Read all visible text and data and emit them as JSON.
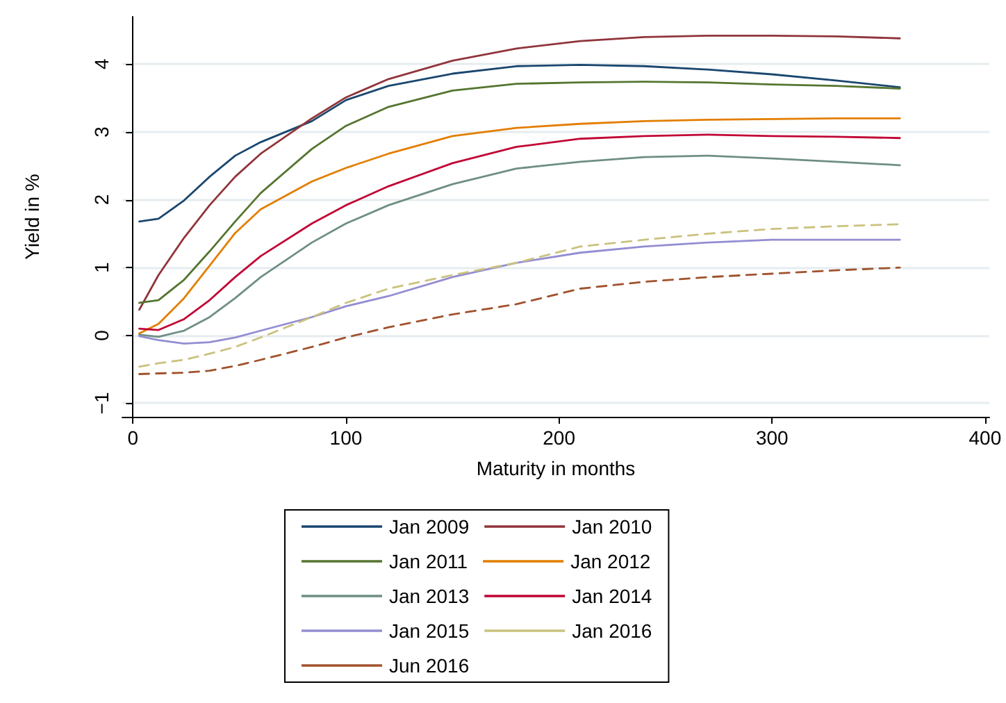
{
  "chart_data": {
    "type": "line",
    "xlabel": "Maturity in months",
    "ylabel": "Yield in %",
    "x": [
      3,
      12,
      24,
      36,
      48,
      60,
      84,
      100,
      120,
      150,
      180,
      210,
      240,
      270,
      300,
      330,
      360
    ],
    "xlim": [
      -5,
      402
    ],
    "xticks": [
      0,
      100,
      200,
      300,
      400
    ],
    "ylim": [
      -1.2,
      4.7
    ],
    "yticks": [
      {
        "value": -1,
        "label": "−1"
      },
      0,
      1,
      2,
      3,
      4
    ],
    "grid": "y",
    "legend": "bottom",
    "series": [
      {
        "name": "Jan 2009",
        "color": "#1a476f",
        "line_style": "solid",
        "values": [
          1.68,
          1.72,
          1.99,
          2.34,
          2.65,
          2.85,
          3.16,
          3.47,
          3.68,
          3.86,
          3.97,
          3.99,
          3.97,
          3.92,
          3.85,
          3.76,
          3.66
        ]
      },
      {
        "name": "Jan 2010",
        "color": "#90353b",
        "line_style": "solid",
        "values": [
          0.38,
          0.89,
          1.44,
          1.92,
          2.34,
          2.68,
          3.2,
          3.51,
          3.78,
          4.05,
          4.23,
          4.34,
          4.4,
          4.42,
          4.42,
          4.41,
          4.38
        ]
      },
      {
        "name": "Jan 2011",
        "color": "#55752f",
        "line_style": "solid",
        "values": [
          0.48,
          0.52,
          0.82,
          1.24,
          1.68,
          2.1,
          2.75,
          3.09,
          3.37,
          3.61,
          3.71,
          3.73,
          3.74,
          3.73,
          3.7,
          3.68,
          3.64
        ]
      },
      {
        "name": "Jan 2012",
        "color": "#e37e00",
        "line_style": "solid",
        "values": [
          0.03,
          0.17,
          0.55,
          1.03,
          1.51,
          1.86,
          2.27,
          2.47,
          2.68,
          2.94,
          3.06,
          3.12,
          3.16,
          3.18,
          3.19,
          3.2,
          3.2
        ]
      },
      {
        "name": "Jan 2013",
        "color": "#6e8e84",
        "line_style": "solid",
        "values": [
          0.01,
          -0.02,
          0.07,
          0.27,
          0.55,
          0.86,
          1.37,
          1.65,
          1.92,
          2.23,
          2.46,
          2.56,
          2.63,
          2.65,
          2.61,
          2.56,
          2.51
        ]
      },
      {
        "name": "Jan 2014",
        "color": "#c10534",
        "line_style": "solid",
        "values": [
          0.1,
          0.08,
          0.24,
          0.52,
          0.86,
          1.17,
          1.65,
          1.92,
          2.2,
          2.54,
          2.78,
          2.9,
          2.94,
          2.96,
          2.94,
          2.93,
          2.91
        ]
      },
      {
        "name": "Jan 2015",
        "color": "#938dd2",
        "line_style": "solid",
        "values": [
          -0.01,
          -0.07,
          -0.12,
          -0.1,
          -0.03,
          0.07,
          0.27,
          0.43,
          0.58,
          0.86,
          1.07,
          1.22,
          1.31,
          1.37,
          1.41,
          1.41,
          1.41
        ]
      },
      {
        "name": "Jan 2016",
        "color": "#cac27e",
        "line_style": "dashed",
        "values": [
          -0.46,
          -0.41,
          -0.36,
          -0.27,
          -0.17,
          -0.03,
          0.27,
          0.48,
          0.69,
          0.89,
          1.07,
          1.31,
          1.41,
          1.5,
          1.57,
          1.61,
          1.64
        ]
      },
      {
        "name": "Jun 2016",
        "color": "#a0522d",
        "line_style": "dashed",
        "values": [
          -0.57,
          -0.56,
          -0.55,
          -0.52,
          -0.45,
          -0.36,
          -0.17,
          -0.03,
          0.12,
          0.31,
          0.46,
          0.69,
          0.79,
          0.86,
          0.91,
          0.96,
          1.0
        ]
      }
    ]
  }
}
